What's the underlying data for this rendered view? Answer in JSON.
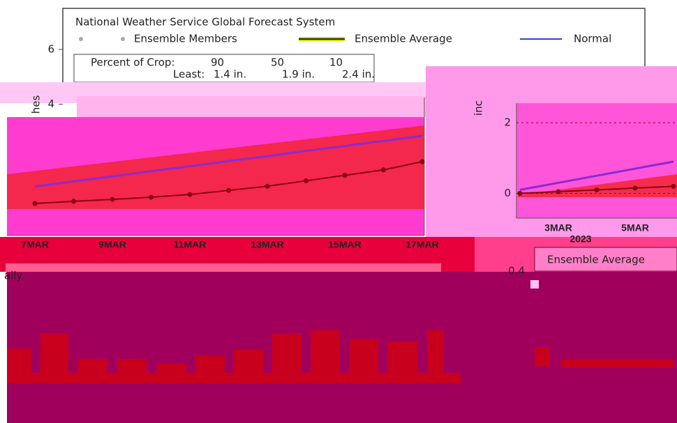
{
  "header": {
    "title": "National Weather Service Global Forecast System"
  },
  "legend": [
    "Ensemble Members",
    "Ensemble Average",
    "Normal"
  ],
  "crop_box": {
    "label": "Percent of Crop:",
    "percents": [
      "90",
      "50",
      "10"
    ],
    "requirement_label": "Least:",
    "amounts": [
      "1.4 in.",
      "1.9 in.",
      "2.4 in."
    ]
  },
  "main_chart": {
    "y_axis_label": "hes",
    "ylim": [
      -0.8,
      7.5
    ],
    "yticks": [
      4,
      6
    ],
    "x_labels": [
      "7MAR",
      "9MAR",
      "11MAR",
      "13MAR",
      "15MAR",
      "17MAR"
    ],
    "average": [
      0.37,
      0.45,
      0.52,
      0.6,
      0.7,
      0.85,
      1.0,
      1.2,
      1.4,
      1.6,
      1.9
    ],
    "normal": [
      0.99,
      1.18,
      1.36,
      1.55,
      1.73,
      1.92,
      2.1,
      2.29,
      2.47,
      2.66,
      2.84
    ],
    "average_color": "#8a0010",
    "normal_color": "#8a2bd0"
  },
  "right_chart": {
    "y_axis_label": "inc",
    "ylim": [
      -0.7,
      3.6
    ],
    "yticks": [
      0,
      2
    ],
    "x_labels": [
      "3MAR",
      "5MAR"
    ],
    "year": "2023",
    "average": [
      0,
      0.05,
      0.1,
      0.15,
      0.2
    ],
    "normal": [
      0.1,
      0.3,
      0.5,
      0.7,
      0.9
    ]
  },
  "bottom_panel": {
    "title": "aily",
    "tick": "0.4",
    "box_label": "Ensemble Average"
  }
}
